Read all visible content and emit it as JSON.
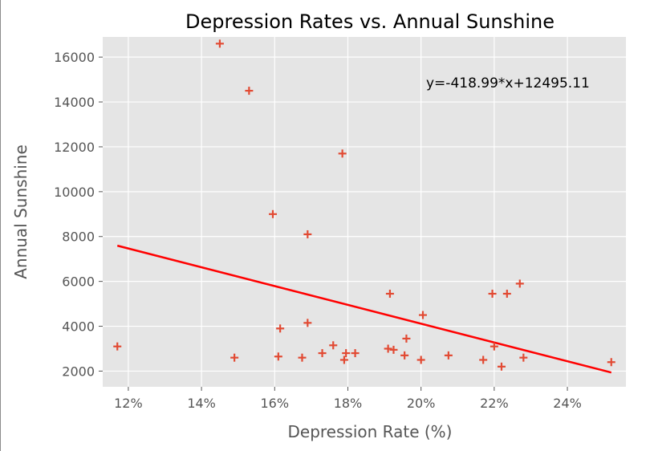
{
  "chart_data": {
    "type": "scatter",
    "title": "Depression Rates vs. Annual Sunshine",
    "xlabel": "Depression Rate (%)",
    "ylabel": "Annual Sunshine",
    "xlim": [
      11.3,
      25.6
    ],
    "ylim": [
      1300,
      16900
    ],
    "x_ticks": [
      12,
      14,
      16,
      18,
      20,
      22,
      24
    ],
    "x_tick_labels": [
      "12%",
      "14%",
      "16%",
      "18%",
      "20%",
      "22%",
      "24%"
    ],
    "y_ticks": [
      2000,
      4000,
      6000,
      8000,
      10000,
      12000,
      14000,
      16000
    ],
    "y_tick_labels": [
      "2000",
      "4000",
      "6000",
      "8000",
      "10000",
      "12000",
      "14000",
      "16000"
    ],
    "grid": true,
    "background": "#e5e5e5",
    "series": [
      {
        "marker": "plus",
        "color": "#e24a33",
        "points": [
          {
            "x": 11.7,
            "y": 3100
          },
          {
            "x": 14.5,
            "y": 16600
          },
          {
            "x": 14.9,
            "y": 2600
          },
          {
            "x": 15.3,
            "y": 14500
          },
          {
            "x": 15.95,
            "y": 9000
          },
          {
            "x": 16.1,
            "y": 2650
          },
          {
            "x": 16.15,
            "y": 3900
          },
          {
            "x": 16.75,
            "y": 2600
          },
          {
            "x": 16.9,
            "y": 4150
          },
          {
            "x": 16.9,
            "y": 8100
          },
          {
            "x": 17.3,
            "y": 2800
          },
          {
            "x": 17.6,
            "y": 3150
          },
          {
            "x": 17.85,
            "y": 11700
          },
          {
            "x": 17.9,
            "y": 2500
          },
          {
            "x": 17.95,
            "y": 2800
          },
          {
            "x": 18.2,
            "y": 2800
          },
          {
            "x": 19.1,
            "y": 3000
          },
          {
            "x": 19.15,
            "y": 5450
          },
          {
            "x": 19.25,
            "y": 2950
          },
          {
            "x": 19.55,
            "y": 2700
          },
          {
            "x": 19.6,
            "y": 3450
          },
          {
            "x": 20.0,
            "y": 2500
          },
          {
            "x": 20.05,
            "y": 4500
          },
          {
            "x": 20.75,
            "y": 2700
          },
          {
            "x": 21.7,
            "y": 2500
          },
          {
            "x": 21.95,
            "y": 5450
          },
          {
            "x": 22.0,
            "y": 3100
          },
          {
            "x": 22.2,
            "y": 2200
          },
          {
            "x": 22.35,
            "y": 5450
          },
          {
            "x": 22.7,
            "y": 5900
          },
          {
            "x": 22.8,
            "y": 2600
          },
          {
            "x": 25.2,
            "y": 2400
          }
        ]
      }
    ],
    "fit_line": {
      "color": "#ff0000",
      "slope": -418.99,
      "intercept": 12495.11,
      "x_range": [
        11.7,
        25.2
      ],
      "equation_label": "y=-418.99*x+12495.11"
    }
  }
}
